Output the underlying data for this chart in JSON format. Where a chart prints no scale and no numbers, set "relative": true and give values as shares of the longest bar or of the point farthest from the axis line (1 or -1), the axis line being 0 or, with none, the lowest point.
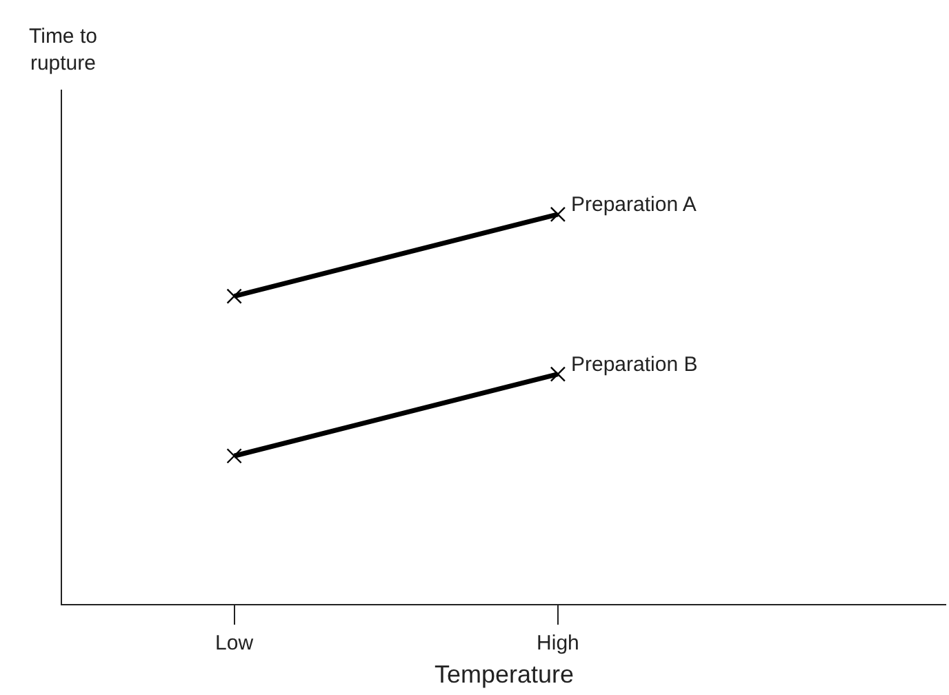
{
  "chart_data": {
    "type": "line",
    "relative": true,
    "xlabel": "Temperature",
    "annotations": [
      "Time to\nrupture"
    ],
    "categories": [
      "Low",
      "High"
    ],
    "series": [
      {
        "name": "Preparation A",
        "color": "#000000",
        "values": [
          0.79,
          1
        ]
      },
      {
        "name": "Preparation B",
        "color": "#000000",
        "values": [
          0.38,
          0.59
        ]
      }
    ],
    "marker": "cross",
    "line_style": "solid"
  }
}
